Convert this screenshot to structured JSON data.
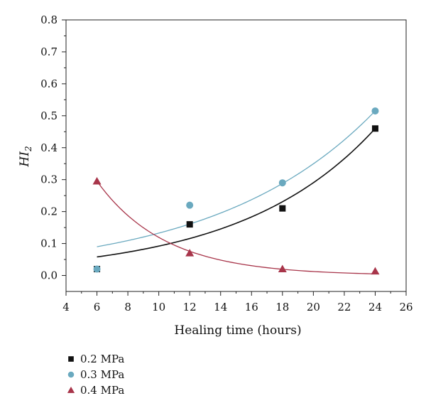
{
  "chart_data": {
    "type": "scatter",
    "title": "",
    "xlabel": "Healing time (hours)",
    "ylabel": {
      "main": "HI",
      "sub": "2"
    },
    "xlim": [
      4,
      26
    ],
    "ylim": [
      -0.05,
      0.8
    ],
    "x_ticks": [
      "4",
      "6",
      "8",
      "10",
      "12",
      "14",
      "16",
      "18",
      "20",
      "22",
      "24",
      "26"
    ],
    "y_ticks": [
      "0.0",
      "0.1",
      "0.2",
      "0.3",
      "0.4",
      "0.5",
      "0.6",
      "0.7",
      "0.8"
    ],
    "grid": false,
    "legend_position": "bottom-left, below plot",
    "series": [
      {
        "name": "0.2 MPa",
        "marker": "square",
        "color": "#111111",
        "x": [
          6,
          12,
          18,
          24
        ],
        "y": [
          0.02,
          0.16,
          0.21,
          0.46
        ],
        "fit": {
          "type": "exponential-growth",
          "color": "#111111",
          "x": [
            6,
            24
          ],
          "y": [
            0.058,
            0.46
          ]
        }
      },
      {
        "name": "0.3 MPa",
        "marker": "circle",
        "color": "#6aa9bf",
        "x": [
          6,
          12,
          18,
          24
        ],
        "y": [
          0.02,
          0.22,
          0.29,
          0.515
        ],
        "fit": {
          "type": "exponential-growth",
          "color": "#6aa9bf",
          "x": [
            6,
            24
          ],
          "y": [
            0.09,
            0.515
          ]
        }
      },
      {
        "name": "0.4 MPa",
        "marker": "triangle",
        "color": "#a8354a",
        "x": [
          6,
          12,
          18,
          24
        ],
        "y": [
          0.295,
          0.07,
          0.02,
          0.013
        ],
        "fit": {
          "type": "exponential-decay",
          "color": "#a8354a",
          "x": [
            6,
            24
          ],
          "y": [
            0.295,
            0.005
          ]
        }
      }
    ]
  }
}
